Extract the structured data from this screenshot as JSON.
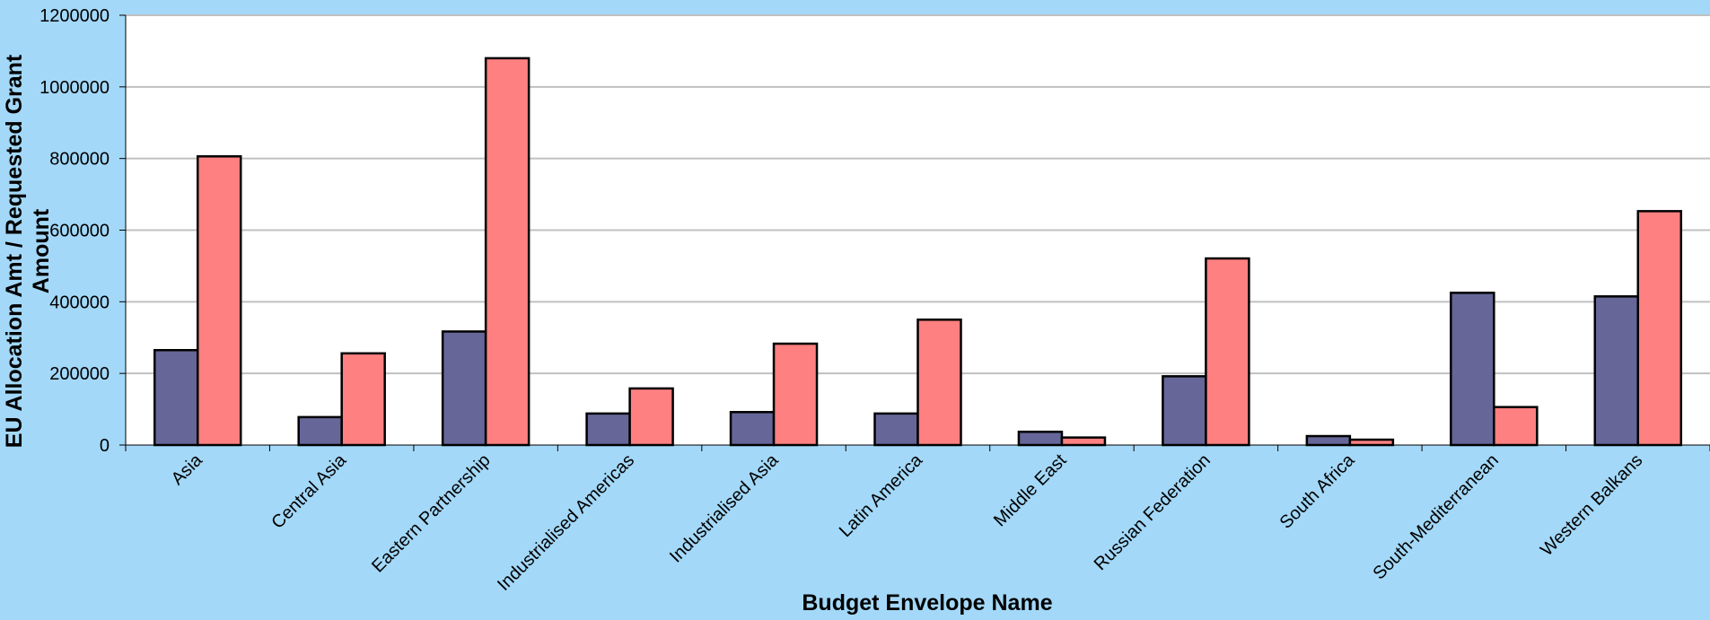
{
  "chart_data": {
    "type": "bar",
    "xlabel": "Budget Envelope Name",
    "ylabel_line1": "EU Allocation Amt / Requested Grant",
    "ylabel_line2": "Amount",
    "ylim": [
      0,
      1200000
    ],
    "yticks": [
      "0",
      "200000",
      "400000",
      "600000",
      "800000",
      "1000000",
      "1200000"
    ],
    "grid": true,
    "categories": [
      "Asia",
      "Central Asia",
      "Eastern Partnership",
      "Industrialised Americas",
      "Industrialised Asia",
      "Latin America",
      "Middle East",
      "Russian Federation",
      "South Africa",
      "South-Mediterranean",
      "Western Balkans"
    ],
    "series": [
      {
        "color": "#666699",
        "values": [
          265000,
          78000,
          317000,
          88000,
          92000,
          88000,
          37000,
          192000,
          25000,
          425000,
          415000
        ]
      },
      {
        "color": "#ff8080",
        "values": [
          806000,
          256000,
          1080000,
          158000,
          283000,
          350000,
          21000,
          521000,
          15000,
          106000,
          653000
        ]
      }
    ],
    "plot_background": "#ffffff",
    "page_background": "#a3d8f8",
    "gridline_color": "#c0c0c0"
  }
}
